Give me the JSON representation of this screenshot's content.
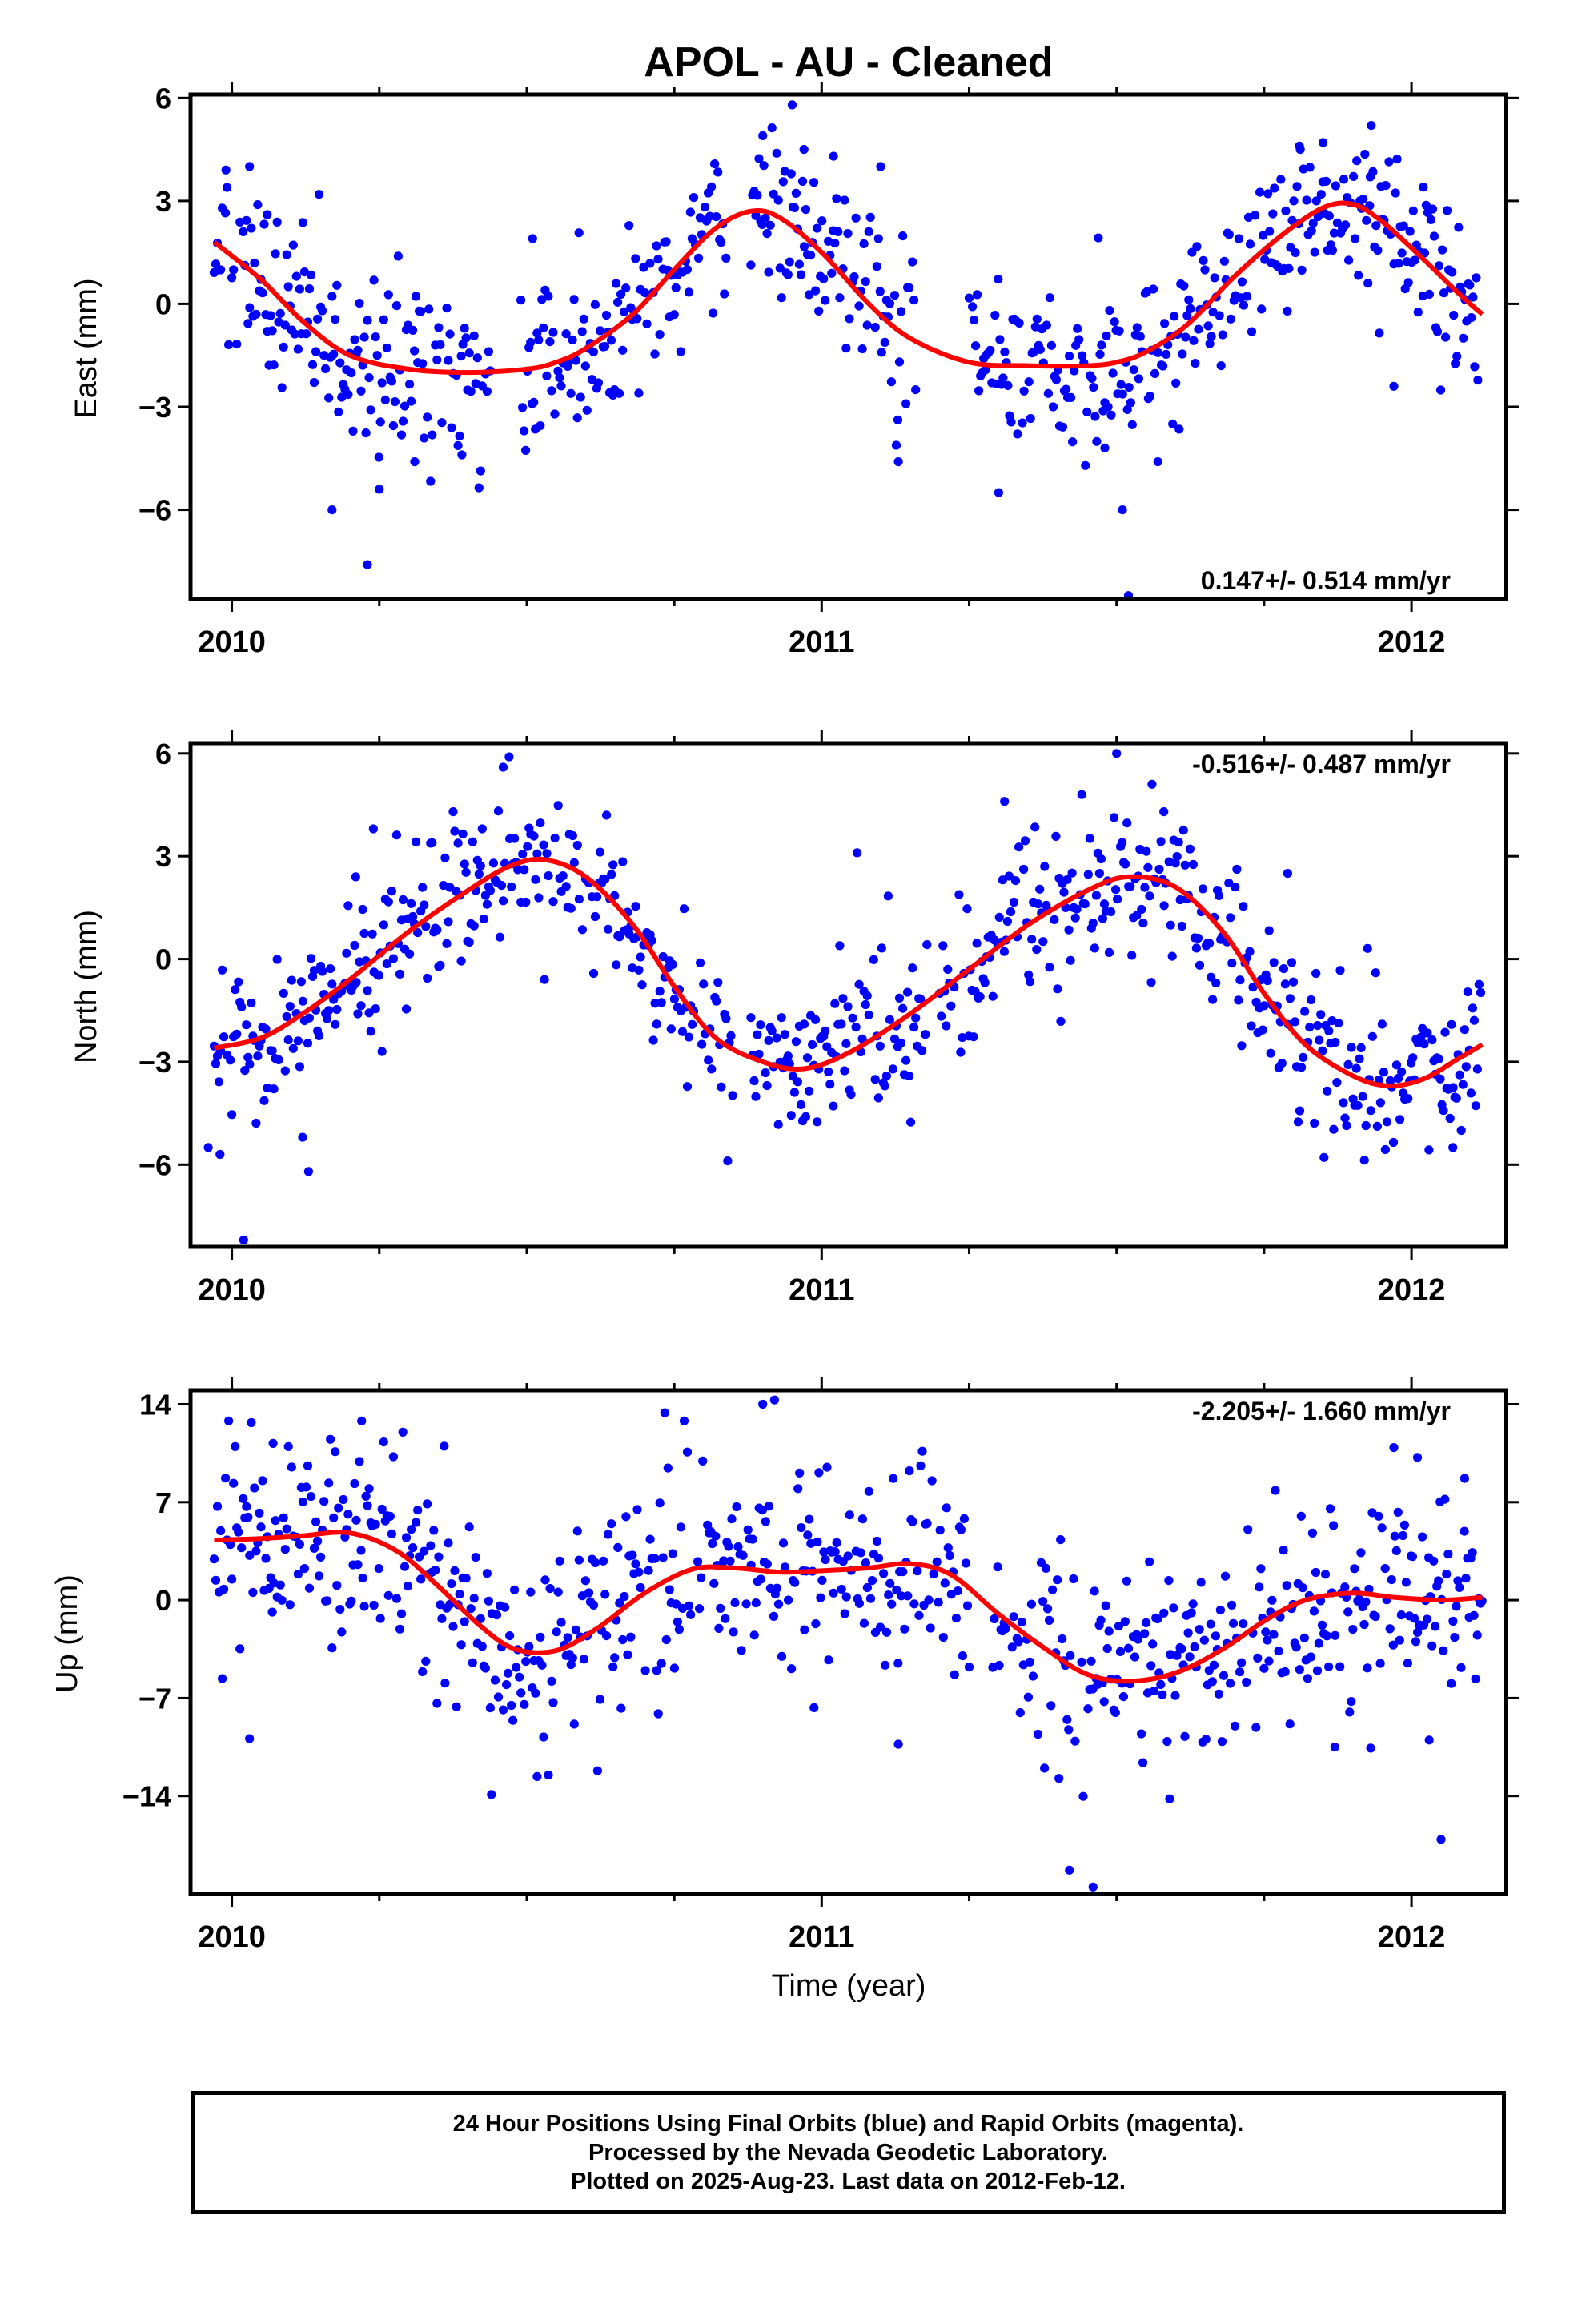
{
  "title": "APOL  - AU - Cleaned",
  "xlabel": "Time (year)",
  "caption": {
    "line1": "24 Hour Positions Using Final Orbits (blue) and Rapid Orbits (magenta).",
    "line2": "Processed by the Nevada Geodetic Laboratory.",
    "line3": "Plotted on 2025-Aug-23. Last data on 2012-Feb-12."
  },
  "colors": {
    "points": "#0000ff",
    "fit": "#ff0000",
    "frame": "#000000"
  },
  "chart_data": [
    {
      "type": "scatter",
      "ylabel": "East (mm)",
      "annotation": "0.147+/- 0.514 mm/yr",
      "xlim": [
        2009.93,
        2012.16
      ],
      "ylim": [
        -8.6,
        6.1
      ],
      "xticks": [
        2010,
        2011,
        2012
      ],
      "yticks": [
        -6,
        -3,
        0,
        3,
        6
      ],
      "ytick_labels": [
        "−6",
        "−3",
        "0",
        "3",
        "6"
      ],
      "grid": false,
      "series": [
        {
          "style": "dots",
          "color": "#0000ff",
          "x": [],
          "y": []
        },
        {
          "style": "line",
          "color": "#ff0000",
          "x": [
            2009.97,
            2010.05,
            2010.12,
            2010.2,
            2010.3,
            2010.4,
            2010.5,
            2010.55,
            2010.6,
            2010.68,
            2010.75,
            2010.82,
            2010.88,
            2010.93,
            2011.0,
            2011.08,
            2011.15,
            2011.25,
            2011.35,
            2011.45,
            2011.5,
            2011.55,
            2011.62,
            2011.7,
            2011.78,
            2011.85,
            2011.9,
            2011.95,
            2012.02,
            2012.08,
            2012.12
          ],
          "y": [
            1.8,
            0.7,
            -0.5,
            -1.5,
            -1.9,
            -2.0,
            -1.9,
            -1.7,
            -1.3,
            -0.3,
            1.0,
            2.2,
            2.7,
            2.5,
            1.5,
            0.0,
            -1.0,
            -1.7,
            -1.8,
            -1.8,
            -1.7,
            -1.4,
            -0.6,
            0.8,
            2.0,
            2.8,
            2.9,
            2.4,
            1.3,
            0.3,
            -0.3
          ]
        }
      ],
      "dots": {
        "seed": 101,
        "ranges": [
          [
            2009.97,
            2010.44
          ],
          [
            2010.49,
            2010.84
          ],
          [
            2010.88,
            2011.16
          ],
          [
            2011.25,
            2012.12
          ]
        ],
        "spread": 1.25,
        "outliers": [
          [
            2009.99,
            3.9
          ],
          [
            2010.03,
            4.0
          ],
          [
            2010.06,
            2.6
          ],
          [
            2010.17,
            -6.0
          ],
          [
            2010.23,
            -7.6
          ],
          [
            2010.25,
            -5.4
          ],
          [
            2010.31,
            -4.6
          ],
          [
            2010.39,
            -4.4
          ],
          [
            2010.51,
            1.9
          ],
          [
            2010.9,
            4.9
          ],
          [
            2010.95,
            5.8
          ],
          [
            2010.97,
            4.5
          ],
          [
            2011.02,
            4.3
          ],
          [
            2011.1,
            4.0
          ],
          [
            2011.13,
            -4.6
          ],
          [
            2011.3,
            -5.5
          ],
          [
            2011.48,
            -4.2
          ],
          [
            2011.51,
            -6.0
          ],
          [
            2011.52,
            -8.5
          ],
          [
            2011.57,
            -4.6
          ],
          [
            2011.81,
            4.6
          ],
          [
            2011.85,
            4.7
          ],
          [
            2011.93,
            3.7
          ],
          [
            2011.97,
            -2.4
          ],
          [
            2012.02,
            3.4
          ]
        ]
      }
    },
    {
      "type": "scatter",
      "ylabel": "North (mm)",
      "annotation": "-0.516+/- 0.487 mm/yr",
      "xlim": [
        2009.93,
        2012.16
      ],
      "ylim": [
        -8.4,
        6.3
      ],
      "xticks": [
        2010,
        2011,
        2012
      ],
      "yticks": [
        -6,
        -3,
        0,
        3,
        6
      ],
      "ytick_labels": [
        "−6",
        "−3",
        "0",
        "3",
        "6"
      ],
      "grid": false,
      "series": [
        {
          "style": "dots",
          "color": "#0000ff",
          "x": [],
          "y": []
        },
        {
          "style": "line",
          "color": "#ff0000",
          "x": [
            2009.97,
            2010.05,
            2010.12,
            2010.2,
            2010.3,
            2010.4,
            2010.47,
            2010.53,
            2010.6,
            2010.68,
            2010.75,
            2010.82,
            2010.9,
            2010.97,
            2011.05,
            2011.15,
            2011.25,
            2011.35,
            2011.45,
            2011.52,
            2011.6,
            2011.68,
            2011.75,
            2011.82,
            2011.9,
            2011.96,
            2012.02,
            2012.08,
            2012.12
          ],
          "y": [
            -2.6,
            -2.3,
            -1.6,
            -0.6,
            0.8,
            2.0,
            2.7,
            2.9,
            2.4,
            1.0,
            -0.8,
            -2.3,
            -3.0,
            -3.2,
            -2.7,
            -1.6,
            -0.3,
            1.0,
            2.0,
            2.4,
            2.1,
            0.8,
            -1.0,
            -2.5,
            -3.4,
            -3.7,
            -3.5,
            -2.9,
            -2.5
          ]
        }
      ],
      "dots": {
        "seed": 202,
        "ranges": [
          [
            2009.97,
            2010.85
          ],
          [
            2010.88,
            2011.18
          ],
          [
            2011.2,
            2012.12
          ]
        ],
        "spread": 1.15,
        "outliers": [
          [
            2009.96,
            -5.5
          ],
          [
            2009.98,
            -5.7
          ],
          [
            2010.02,
            -8.2
          ],
          [
            2010.12,
            -5.2
          ],
          [
            2010.13,
            -6.2
          ],
          [
            2010.21,
            2.4
          ],
          [
            2010.24,
            3.8
          ],
          [
            2010.47,
            5.9
          ],
          [
            2010.46,
            5.6
          ],
          [
            2010.53,
            -0.6
          ],
          [
            2011.06,
            3.1
          ],
          [
            2011.31,
            4.6
          ],
          [
            2011.5,
            6.0
          ],
          [
            2011.56,
            5.1
          ],
          [
            2011.58,
            4.3
          ],
          [
            2011.79,
            2.5
          ],
          [
            2012.07,
            -5.5
          ]
        ]
      }
    },
    {
      "type": "scatter",
      "ylabel": "Up (mm)",
      "annotation": "-2.205+/- 1.660 mm/yr",
      "xlim": [
        2009.93,
        2012.16
      ],
      "ylim": [
        -21,
        15
      ],
      "xticks": [
        2010,
        2011,
        2012
      ],
      "yticks": [
        -14,
        -7,
        0,
        7,
        14
      ],
      "ytick_labels": [
        "−14",
        "−7",
        "0",
        "7",
        "14"
      ],
      "grid": false,
      "series": [
        {
          "style": "dots",
          "color": "#0000ff",
          "x": [],
          "y": []
        },
        {
          "style": "line",
          "color": "#ff0000",
          "x": [
            2009.97,
            2010.05,
            2010.12,
            2010.2,
            2010.28,
            2010.35,
            2010.42,
            2010.48,
            2010.55,
            2010.62,
            2010.7,
            2010.78,
            2010.85,
            2010.93,
            2011.0,
            2011.08,
            2011.15,
            2011.22,
            2011.3,
            2011.38,
            2011.45,
            2011.52,
            2011.6,
            2011.68,
            2011.75,
            2011.82,
            2011.9,
            2011.97,
            2012.05,
            2012.12
          ],
          "y": [
            4.3,
            4.4,
            4.6,
            4.8,
            3.5,
            1.0,
            -1.8,
            -3.5,
            -3.6,
            -2.0,
            0.5,
            2.2,
            2.3,
            2.0,
            2.1,
            2.3,
            2.6,
            1.8,
            -1.0,
            -3.5,
            -5.3,
            -5.8,
            -5.2,
            -3.5,
            -1.5,
            0.0,
            0.5,
            0.2,
            0.0,
            0.2
          ]
        }
      ],
      "dots": {
        "seed": 303,
        "ranges": [
          [
            2009.97,
            2010.78
          ],
          [
            2010.79,
            2011.25
          ],
          [
            2011.29,
            2012.12
          ]
        ],
        "spread": 3.6,
        "outliers": [
          [
            2010.03,
            -9.9
          ],
          [
            2010.07,
            11.2
          ],
          [
            2010.22,
            12.8
          ],
          [
            2010.29,
            12.0
          ],
          [
            2010.36,
            11.0
          ],
          [
            2010.44,
            -13.9
          ],
          [
            2010.62,
            -12.2
          ],
          [
            2010.9,
            14.0
          ],
          [
            2010.92,
            14.3
          ],
          [
            2011.13,
            -10.3
          ],
          [
            2011.42,
            -19.3
          ],
          [
            2011.46,
            -20.5
          ],
          [
            2011.59,
            -14.2
          ],
          [
            2011.87,
            -10.5
          ],
          [
            2011.97,
            10.9
          ],
          [
            2012.01,
            10.2
          ],
          [
            2012.03,
            -10.0
          ],
          [
            2012.05,
            -17.1
          ],
          [
            2012.09,
            8.7
          ]
        ]
      }
    }
  ]
}
